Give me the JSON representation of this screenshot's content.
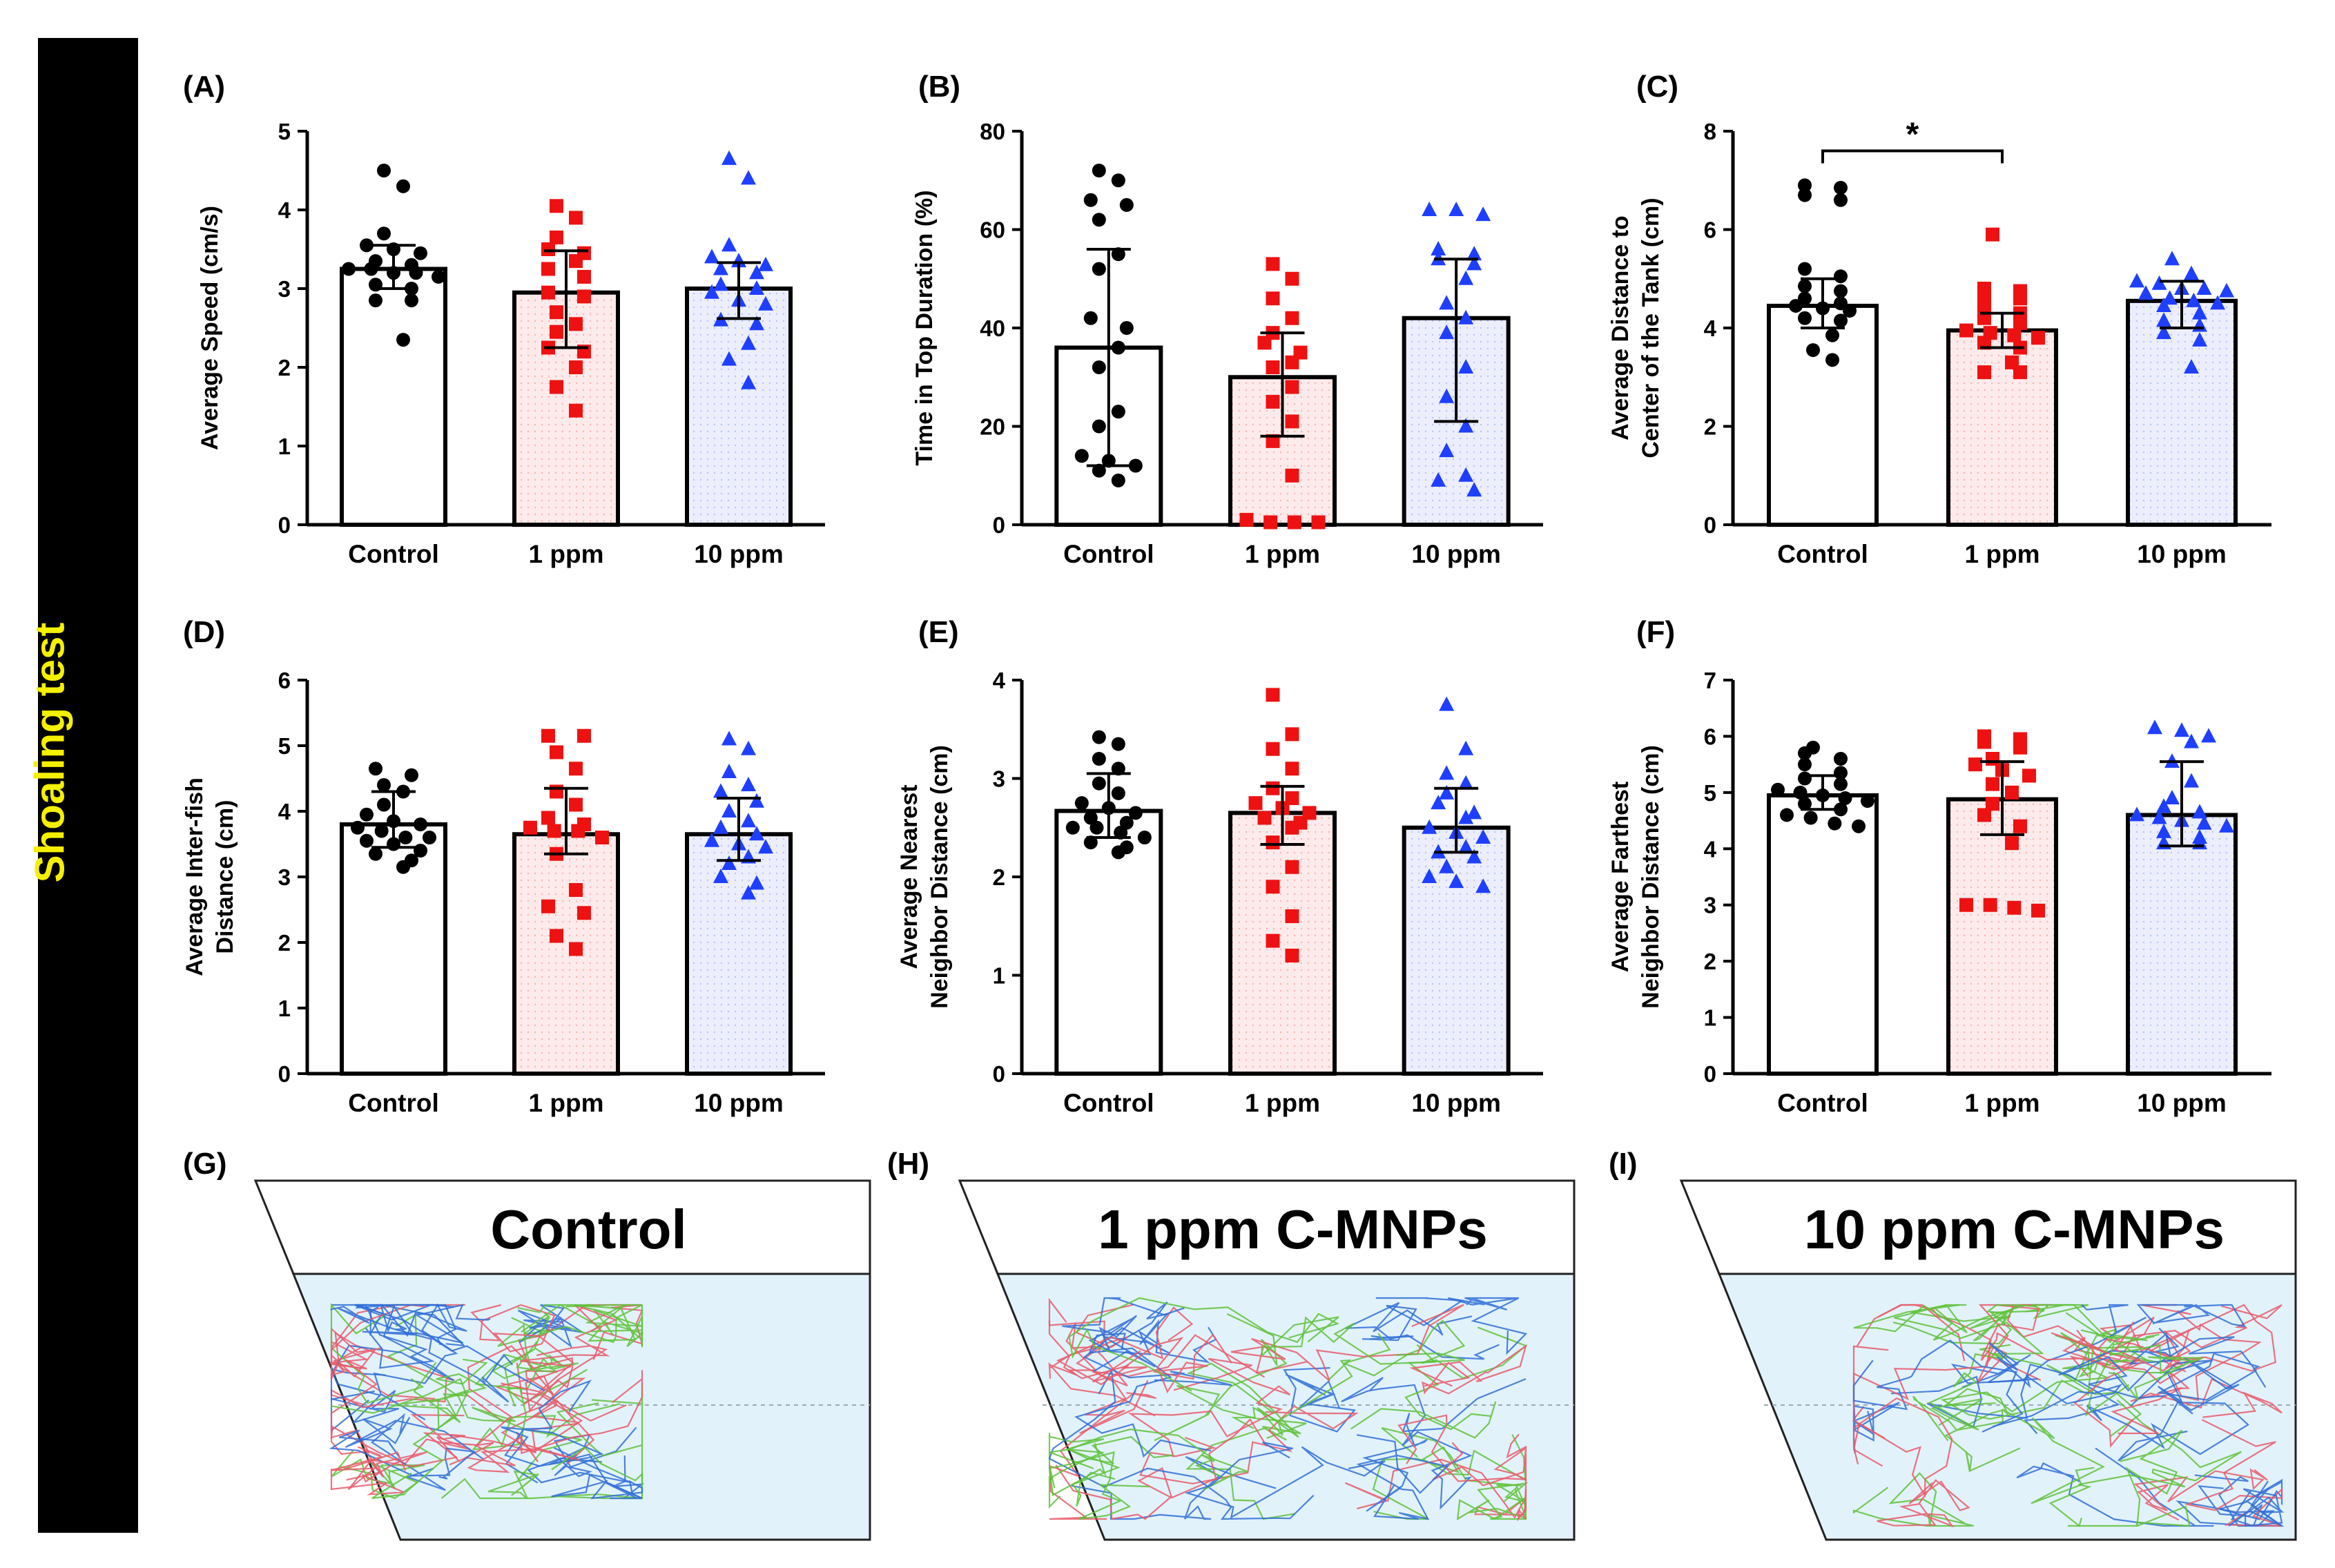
{
  "side_title": "Shoaling test",
  "colors": {
    "control": "#000000",
    "ppm1": "#ee1111",
    "ppm10": "#1f3fff",
    "bar_fill_control": "#ffffff",
    "bar_fill_ppm1": "#fdeaea",
    "bar_fill_ppm10": "#eceefc",
    "tank_water": "#e2f2fb",
    "banner_text": "#f4f000"
  },
  "chart_data": [
    {
      "panel": "(A)",
      "type": "bar",
      "ylabel": [
        "Average Speed (cm/s)"
      ],
      "ylim": [
        0,
        5
      ],
      "yticks": [
        0,
        1,
        2,
        3,
        4,
        5
      ],
      "categories": [
        "Control",
        "1 ppm",
        "10 ppm"
      ],
      "values": [
        3.25,
        2.95,
        3.0
      ],
      "error_low": [
        3.0,
        2.25,
        2.62
      ],
      "error_high": [
        3.55,
        3.48,
        3.33
      ],
      "points": [
        [
          4.5,
          4.3,
          3.7,
          3.55,
          3.5,
          3.45,
          3.35,
          3.3,
          3.25,
          3.25,
          3.2,
          3.2,
          3.15,
          3.05,
          3.0,
          2.85,
          2.85,
          2.35
        ],
        [
          4.05,
          3.9,
          3.65,
          3.5,
          3.45,
          3.35,
          3.25,
          3.15,
          2.95,
          2.9,
          2.7,
          2.55,
          2.45,
          2.25,
          2.2,
          2.0,
          1.75,
          1.45
        ],
        [
          4.65,
          4.4,
          3.55,
          3.4,
          3.35,
          3.3,
          3.25,
          3.2,
          3.05,
          3.0,
          2.95,
          2.85,
          2.8,
          2.6,
          2.55,
          2.3,
          2.1,
          1.8
        ]
      ],
      "significance": null
    },
    {
      "panel": "(B)",
      "type": "bar",
      "ylabel": [
        "Time in Top Duration (%)"
      ],
      "ylim": [
        0,
        80
      ],
      "yticks": [
        0,
        20,
        40,
        60,
        80
      ],
      "categories": [
        "Control",
        "1 ppm",
        "10 ppm"
      ],
      "values": [
        36,
        30,
        42
      ],
      "error_low": [
        12,
        18,
        21
      ],
      "error_high": [
        56,
        39,
        54
      ],
      "points": [
        [
          72,
          70,
          66,
          65,
          62,
          55,
          52,
          42,
          40,
          36,
          32,
          23,
          20,
          14,
          13,
          12,
          11,
          9
        ],
        [
          53,
          50,
          46,
          42,
          39,
          37,
          35,
          33,
          32,
          28,
          25,
          21,
          17,
          10,
          1,
          0.5,
          0.5,
          0.5
        ],
        [
          64,
          64,
          63,
          56,
          55,
          54,
          53,
          50,
          45,
          42,
          39,
          32,
          26,
          20,
          15,
          10,
          9,
          7
        ]
      ],
      "significance": null
    },
    {
      "panel": "(C)",
      "type": "bar",
      "ylabel": [
        "Average Distance to",
        "Center of the Tank (cm)"
      ],
      "ylim": [
        0,
        8
      ],
      "yticks": [
        0,
        2,
        4,
        6,
        8
      ],
      "categories": [
        "Control",
        "1 ppm",
        "10 ppm"
      ],
      "values": [
        4.45,
        3.95,
        4.55
      ],
      "error_low": [
        4.0,
        3.6,
        4.0
      ],
      "error_high": [
        5.0,
        4.3,
        4.95
      ],
      "points": [
        [
          6.9,
          6.85,
          6.7,
          6.6,
          5.2,
          5.05,
          4.85,
          4.75,
          4.6,
          4.5,
          4.45,
          4.4,
          4.35,
          4.2,
          4.15,
          3.85,
          3.55,
          3.35
        ],
        [
          5.9,
          4.8,
          4.75,
          4.65,
          4.6,
          4.4,
          4.3,
          4.2,
          4.1,
          3.95,
          3.9,
          3.85,
          3.8,
          3.7,
          3.6,
          3.3,
          3.1,
          3.1
        ],
        [
          5.4,
          5.1,
          4.95,
          4.9,
          4.8,
          4.8,
          4.75,
          4.7,
          4.6,
          4.55,
          4.5,
          4.45,
          4.3,
          4.15,
          4.05,
          3.9,
          3.75,
          3.2
        ]
      ],
      "significance": "*"
    },
    {
      "panel": "(D)",
      "type": "bar",
      "ylabel": [
        "Average Inter-fish",
        "Distance (cm)"
      ],
      "ylim": [
        0,
        6
      ],
      "yticks": [
        0,
        1,
        2,
        3,
        4,
        5,
        6
      ],
      "categories": [
        "Control",
        "1 ppm",
        "10 ppm"
      ],
      "values": [
        3.8,
        3.65,
        3.65
      ],
      "error_low": [
        3.45,
        3.35,
        3.25
      ],
      "error_high": [
        4.3,
        4.35,
        4.2
      ],
      "points": [
        [
          4.65,
          4.55,
          4.4,
          4.3,
          4.1,
          3.95,
          3.85,
          3.8,
          3.75,
          3.7,
          3.6,
          3.6,
          3.55,
          3.5,
          3.4,
          3.35,
          3.25,
          3.15
        ],
        [
          5.15,
          5.15,
          4.9,
          4.65,
          4.3,
          4.1,
          3.9,
          3.8,
          3.75,
          3.7,
          3.7,
          3.6,
          3.35,
          2.8,
          2.55,
          2.45,
          2.1,
          1.9
        ],
        [
          5.1,
          4.95,
          4.6,
          4.4,
          4.3,
          4.15,
          4.0,
          3.85,
          3.75,
          3.65,
          3.55,
          3.5,
          3.45,
          3.3,
          3.2,
          3.0,
          2.9,
          2.75
        ]
      ],
      "significance": null
    },
    {
      "panel": "(E)",
      "type": "bar",
      "ylabel": [
        "Average Nearest",
        "Neighbor Distance (cm)"
      ],
      "ylim": [
        0,
        4
      ],
      "yticks": [
        0,
        1,
        2,
        3,
        4
      ],
      "categories": [
        "Control",
        "1 ppm",
        "10 ppm"
      ],
      "values": [
        2.67,
        2.65,
        2.5
      ],
      "error_low": [
        2.4,
        2.33,
        2.25
      ],
      "error_high": [
        3.05,
        2.92,
        2.9
      ],
      "points": [
        [
          3.42,
          3.35,
          3.2,
          3.1,
          2.95,
          2.85,
          2.75,
          2.7,
          2.65,
          2.6,
          2.55,
          2.5,
          2.5,
          2.45,
          2.4,
          2.35,
          2.3,
          2.25
        ],
        [
          3.85,
          3.45,
          3.3,
          3.1,
          2.9,
          2.8,
          2.75,
          2.7,
          2.65,
          2.6,
          2.55,
          2.5,
          2.35,
          2.1,
          1.9,
          1.6,
          1.35,
          1.2
        ],
        [
          3.75,
          3.3,
          3.05,
          2.95,
          2.85,
          2.75,
          2.65,
          2.6,
          2.5,
          2.45,
          2.4,
          2.3,
          2.25,
          2.2,
          2.1,
          2.0,
          1.95,
          1.9
        ]
      ],
      "significance": null
    },
    {
      "panel": "(F)",
      "type": "bar",
      "ylabel": [
        "Average Farthest",
        "Neighbor Distance (cm)"
      ],
      "ylim": [
        0,
        7
      ],
      "yticks": [
        0,
        1,
        2,
        3,
        4,
        5,
        6,
        7
      ],
      "categories": [
        "Control",
        "1 ppm",
        "10 ppm"
      ],
      "values": [
        4.95,
        4.88,
        4.6
      ],
      "error_low": [
        4.7,
        4.25,
        4.05
      ],
      "error_high": [
        5.3,
        5.55,
        5.55
      ],
      "points": [
        [
          5.8,
          5.7,
          5.6,
          5.5,
          5.35,
          5.25,
          5.15,
          5.05,
          5.0,
          4.95,
          4.9,
          4.85,
          4.8,
          4.7,
          4.6,
          4.55,
          4.45,
          4.4
        ],
        [
          6.0,
          5.95,
          5.9,
          5.8,
          5.6,
          5.5,
          5.4,
          5.3,
          5.15,
          5.0,
          4.8,
          4.6,
          4.4,
          4.1,
          3.0,
          3.0,
          2.95,
          2.9
        ],
        [
          6.15,
          6.1,
          6.0,
          5.9,
          5.55,
          5.2,
          4.9,
          4.75,
          4.65,
          4.6,
          4.55,
          4.5,
          4.45,
          4.4,
          4.3,
          4.2,
          4.1,
          4.1
        ]
      ],
      "significance": null
    }
  ],
  "tracks": [
    {
      "panel": "(G)",
      "title": "Control"
    },
    {
      "panel": "(H)",
      "title": "1 ppm C-MNPs"
    },
    {
      "panel": "(I)",
      "title": "10 ppm C-MNPs"
    }
  ]
}
